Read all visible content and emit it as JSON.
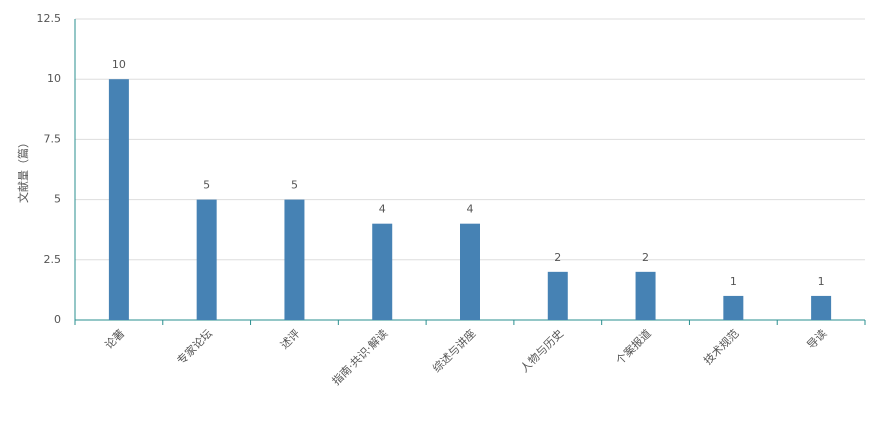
{
  "chart_data": {
    "type": "bar",
    "y_label": "文献量（篇）",
    "categories": [
      "论著",
      "专家论坛",
      "述评",
      "指南·共识·解读",
      "综述与讲座",
      "人物与历史",
      "个案报道",
      "技术规范",
      "导读"
    ],
    "values": [
      10,
      5,
      5,
      4,
      4,
      2,
      2,
      1,
      1
    ],
    "color": "#4682b4",
    "ylim": [
      0,
      12.5
    ],
    "yticks": [
      0,
      2.5,
      5,
      7.5,
      10,
      12.5
    ],
    "grid": true
  }
}
